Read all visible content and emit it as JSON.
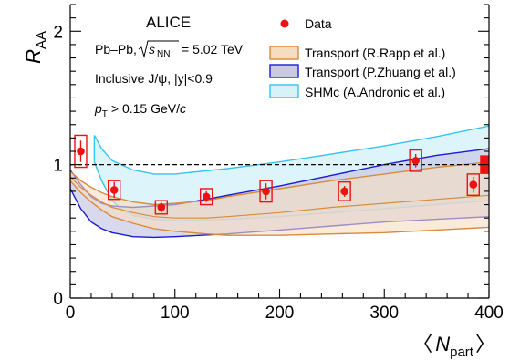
{
  "chart_data": {
    "type": "scatter",
    "experiment": "ALICE",
    "info": {
      "collision": "Pb–Pb,",
      "sqrt_s_label": "s",
      "sqrt_s_sub": "NN",
      "energy": "= 5.02 TeV",
      "selection": "Inclusive J/ψ, |y|<0.9",
      "pt_p": "p",
      "pt_sub": "T",
      "pt_rest": "> 0.15 GeV/",
      "pt_c": "c"
    },
    "xlabel_main": "N",
    "xlabel_sub": "part",
    "xlabel_left": "〈",
    "xlabel_right": "〉",
    "ylabel_main": "R",
    "ylabel_sub": "AA",
    "xlim": [
      0,
      400
    ],
    "ylim": [
      0,
      2.2
    ],
    "xticks": [
      0,
      100,
      200,
      300,
      400
    ],
    "yticks": [
      0,
      1,
      2
    ],
    "reference_line": 1,
    "colors": {
      "data": "#ee1111",
      "rapp_fill": "#f6dcc0",
      "rapp_line": "#d98a3a",
      "zhuang_fill": "#c9c9e6",
      "zhuang_line": "#1a1ad2",
      "shm_fill": "#d8f2fa",
      "shm_line": "#34c4ec"
    },
    "legend": [
      {
        "key": "data",
        "label": "Data"
      },
      {
        "key": "rapp",
        "label": "Transport (R.Rapp et al.)"
      },
      {
        "key": "zhuang",
        "label": "Transport (P.Zhuang et al.)"
      },
      {
        "key": "shm",
        "label": "SHMc (A.Andronic et al.)"
      }
    ],
    "series": [
      {
        "key": "data",
        "points": [
          {
            "x": 10,
            "y": 1.1,
            "stat": 0.08,
            "sys": 0.12
          },
          {
            "x": 42,
            "y": 0.81,
            "stat": 0.06,
            "sys": 0.07
          },
          {
            "x": 87,
            "y": 0.68,
            "stat": 0.04,
            "sys": 0.05
          },
          {
            "x": 130,
            "y": 0.76,
            "stat": 0.04,
            "sys": 0.06
          },
          {
            "x": 187,
            "y": 0.8,
            "stat": 0.06,
            "sys": 0.08
          },
          {
            "x": 262,
            "y": 0.8,
            "stat": 0.04,
            "sys": 0.07
          },
          {
            "x": 330,
            "y": 1.03,
            "stat": 0.05,
            "sys": 0.08
          },
          {
            "x": 385,
            "y": 0.85,
            "stat": 0.06,
            "sys": 0.08
          }
        ],
        "global_uncertainty": {
          "x": 395,
          "low": 0.93,
          "high": 1.07
        }
      },
      {
        "key": "shm",
        "upper": [
          [
            23,
            1.22
          ],
          [
            30,
            1.12
          ],
          [
            40,
            1.03
          ],
          [
            60,
            0.96
          ],
          [
            80,
            0.93
          ],
          [
            100,
            0.93
          ],
          [
            150,
            0.97
          ],
          [
            200,
            1.02
          ],
          [
            250,
            1.08
          ],
          [
            300,
            1.14
          ],
          [
            350,
            1.21
          ],
          [
            400,
            1.29
          ]
        ],
        "lower": [
          [
            23,
            1.02
          ],
          [
            30,
            0.88
          ],
          [
            40,
            0.73
          ],
          [
            50,
            0.66
          ],
          [
            60,
            0.62
          ],
          [
            80,
            0.59
          ],
          [
            100,
            0.58
          ],
          [
            150,
            0.59
          ],
          [
            200,
            0.61
          ],
          [
            250,
            0.64
          ],
          [
            300,
            0.67
          ],
          [
            350,
            0.7
          ],
          [
            400,
            0.73
          ]
        ]
      },
      {
        "key": "zhuang",
        "upper": [
          [
            0,
            0.96
          ],
          [
            10,
            0.85
          ],
          [
            20,
            0.76
          ],
          [
            30,
            0.71
          ],
          [
            40,
            0.69
          ],
          [
            60,
            0.68
          ],
          [
            80,
            0.69
          ],
          [
            100,
            0.7
          ],
          [
            130,
            0.74
          ],
          [
            150,
            0.77
          ],
          [
            200,
            0.84
          ],
          [
            250,
            0.92
          ],
          [
            300,
            1.0
          ],
          [
            350,
            1.07
          ],
          [
            400,
            1.12
          ]
        ],
        "lower": [
          [
            0,
            0.82
          ],
          [
            10,
            0.67
          ],
          [
            20,
            0.57
          ],
          [
            30,
            0.52
          ],
          [
            40,
            0.49
          ],
          [
            60,
            0.46
          ],
          [
            80,
            0.455
          ],
          [
            100,
            0.46
          ],
          [
            150,
            0.48
          ],
          [
            200,
            0.51
          ],
          [
            250,
            0.54
          ],
          [
            300,
            0.57
          ],
          [
            350,
            0.59
          ],
          [
            400,
            0.61
          ]
        ]
      },
      {
        "key": "rapp",
        "upper": [
          [
            0,
            0.95
          ],
          [
            10,
            0.88
          ],
          [
            20,
            0.83
          ],
          [
            30,
            0.79
          ],
          [
            40,
            0.76
          ],
          [
            60,
            0.72
          ],
          [
            80,
            0.7
          ],
          [
            100,
            0.71
          ],
          [
            130,
            0.73
          ],
          [
            150,
            0.76
          ],
          [
            200,
            0.82
          ],
          [
            250,
            0.88
          ],
          [
            300,
            0.93
          ],
          [
            350,
            0.98
          ],
          [
            400,
            1.02
          ]
        ],
        "lower": [
          [
            0,
            0.88
          ],
          [
            10,
            0.79
          ],
          [
            20,
            0.72
          ],
          [
            30,
            0.66
          ],
          [
            40,
            0.61
          ],
          [
            60,
            0.56
          ],
          [
            80,
            0.52
          ],
          [
            100,
            0.5
          ],
          [
            130,
            0.48
          ],
          [
            150,
            0.47
          ],
          [
            200,
            0.47
          ],
          [
            250,
            0.48
          ],
          [
            300,
            0.49
          ],
          [
            350,
            0.51
          ],
          [
            400,
            0.53
          ]
        ],
        "central": [
          [
            0,
            0.91
          ],
          [
            10,
            0.83
          ],
          [
            20,
            0.77
          ],
          [
            30,
            0.72
          ],
          [
            40,
            0.68
          ],
          [
            60,
            0.64
          ],
          [
            80,
            0.61
          ],
          [
            100,
            0.6
          ],
          [
            130,
            0.6
          ],
          [
            150,
            0.61
          ],
          [
            200,
            0.64
          ],
          [
            250,
            0.68
          ],
          [
            300,
            0.71
          ],
          [
            350,
            0.74
          ],
          [
            400,
            0.77
          ]
        ]
      }
    ]
  }
}
